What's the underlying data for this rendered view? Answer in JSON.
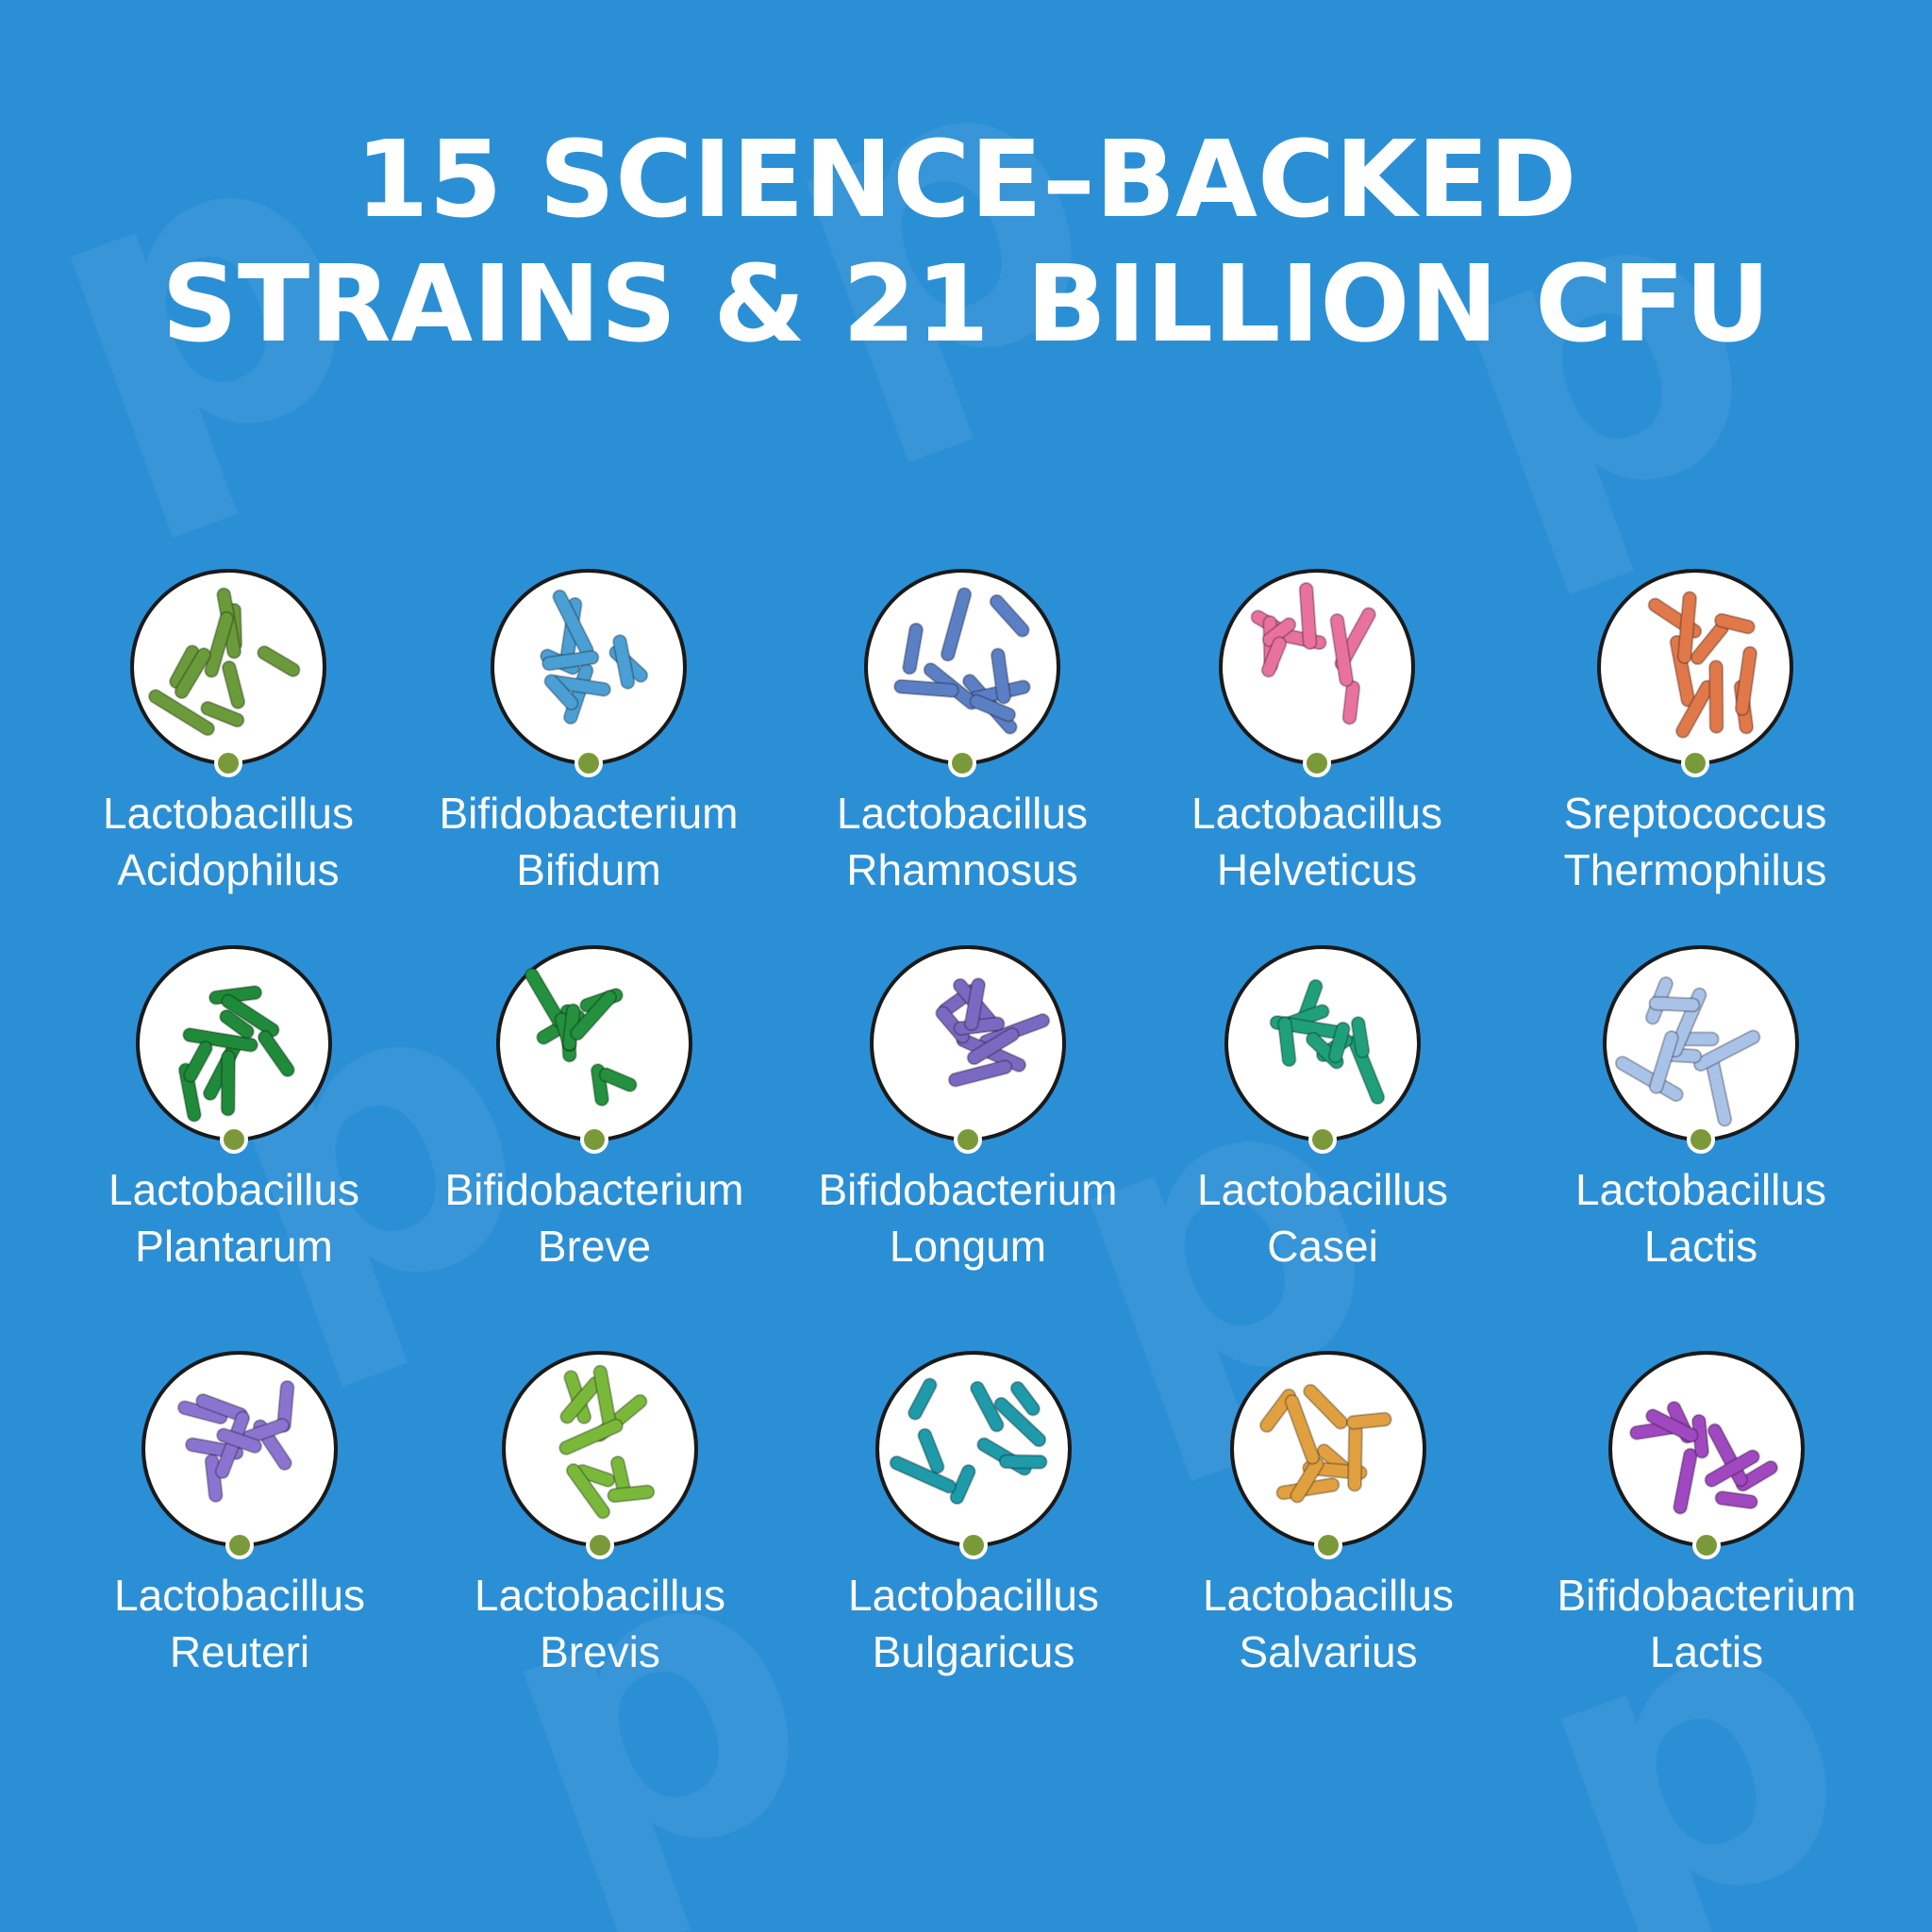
{
  "header": {
    "title": [
      "15 SCIENCE–BACKED",
      "STRAINS & 21 BILLION CFU"
    ]
  },
  "strains": [
    {
      "lines": [
        "Lactobacillus",
        "Acidophilus"
      ],
      "color": "#6a9a3a"
    },
    {
      "lines": [
        "Bifidobacterium",
        "Bifidum"
      ],
      "color": "#4a9fd4"
    },
    {
      "lines": [
        "Lactobacillus",
        "Rhamnosus"
      ],
      "color": "#5b7fc4"
    },
    {
      "lines": [
        "Lactobacillus",
        "Helveticus"
      ],
      "color": "#e8719e"
    },
    {
      "lines": [
        "Sreptococcus",
        "Thermophilus"
      ],
      "color": "#e0784a"
    },
    {
      "lines": [
        "Lactobacillus",
        "Plantarum"
      ],
      "color": "#1f8a3a"
    },
    {
      "lines": [
        "Bifidobacterium",
        "Breve"
      ],
      "color": "#23913d"
    },
    {
      "lines": [
        "Bifidobacterium",
        "Longum"
      ],
      "color": "#7b68c0"
    },
    {
      "lines": [
        "Lactobacillus",
        "Casei"
      ],
      "color": "#1fa07a"
    },
    {
      "lines": [
        "Lactobacillus",
        "Lactis"
      ],
      "color": "#a9c2e8"
    },
    {
      "lines": [
        "Lactobacillus",
        "Reuteri"
      ],
      "color": "#8a74d0"
    },
    {
      "lines": [
        "Lactobacillus",
        "Brevis"
      ],
      "color": "#7ab83a"
    },
    {
      "lines": [
        "Lactobacillus",
        "Bulgaricus"
      ],
      "color": "#1e9aa8"
    },
    {
      "lines": [
        "Lactobacillus",
        "Salvarius"
      ],
      "color": "#e0a040"
    },
    {
      "lines": [
        "Bifidobacterium",
        "Lactis"
      ],
      "color": "#a048c0"
    }
  ]
}
